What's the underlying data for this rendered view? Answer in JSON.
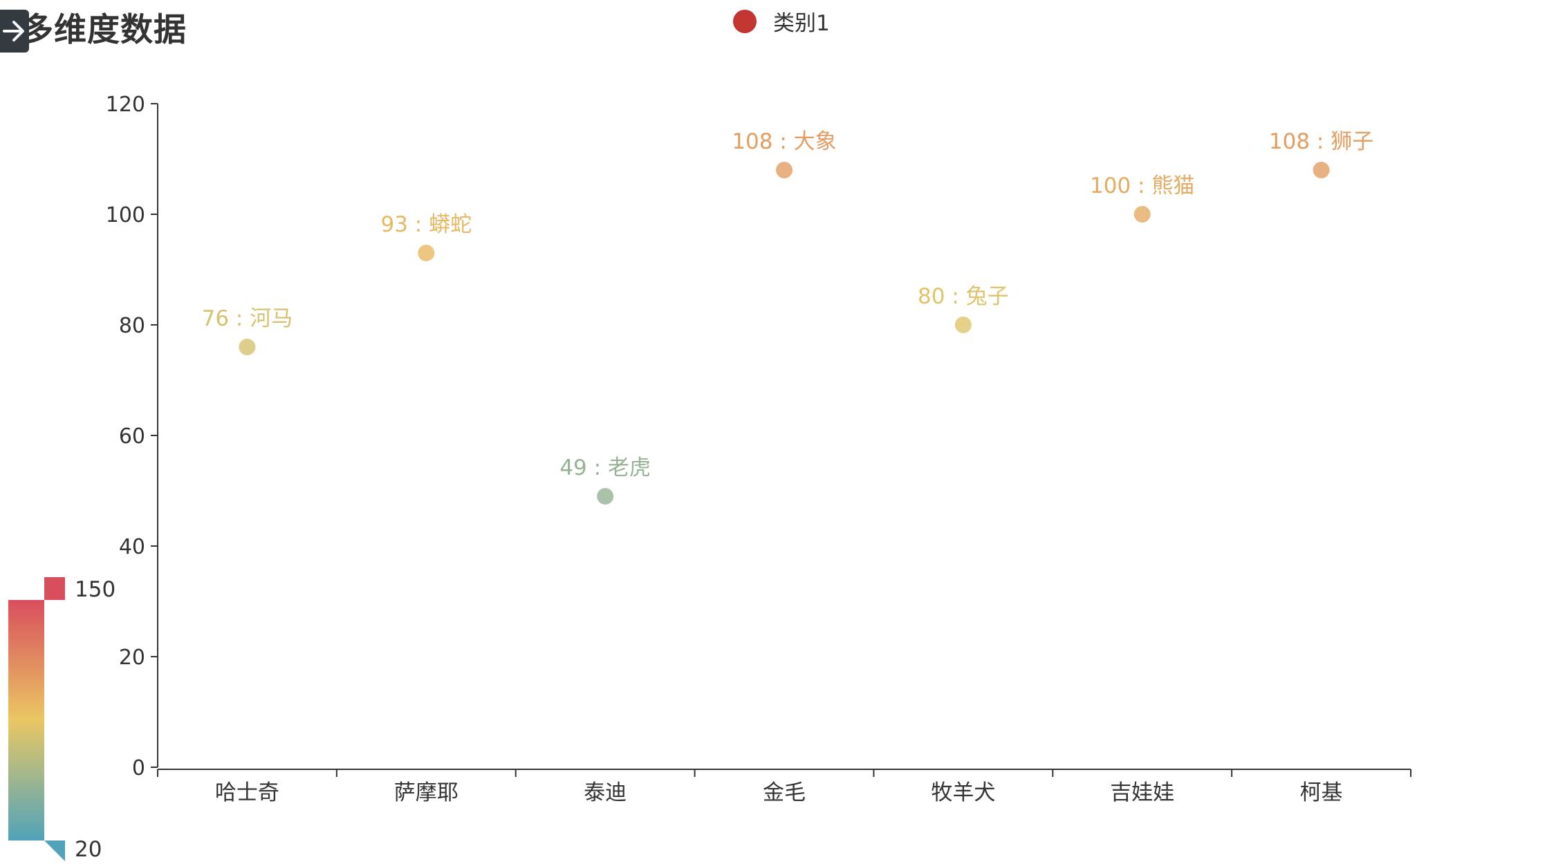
{
  "page": {
    "title": "多维度数据"
  },
  "legend": {
    "items": [
      {
        "label": "类别1",
        "color": "#c23531"
      }
    ]
  },
  "visual_map": {
    "max_label": "150",
    "min_label": "20",
    "min": 20,
    "max": 150,
    "colors": [
      "#50a3ba",
      "#eac763",
      "#d94e5d"
    ]
  },
  "chart_data": {
    "type": "scatter",
    "title": "多维度数据",
    "categories": [
      "哈士奇",
      "萨摩耶",
      "泰迪",
      "金毛",
      "牧羊犬",
      "吉娃娃",
      "柯基"
    ],
    "series": [
      {
        "name": "类别1",
        "values": [
          76,
          93,
          49,
          108,
          80,
          100,
          108
        ],
        "labels": [
          "76 : 河马",
          "93 : 蟒蛇",
          "49 : 老虎",
          "108 : 大象",
          "80 : 兔子",
          "100 : 熊猫",
          "108 : 狮子"
        ]
      }
    ],
    "ylim": [
      0,
      120
    ],
    "yticks": [
      0,
      20,
      40,
      60,
      80,
      100,
      120
    ],
    "grid": false,
    "legend_position": "top-center"
  }
}
